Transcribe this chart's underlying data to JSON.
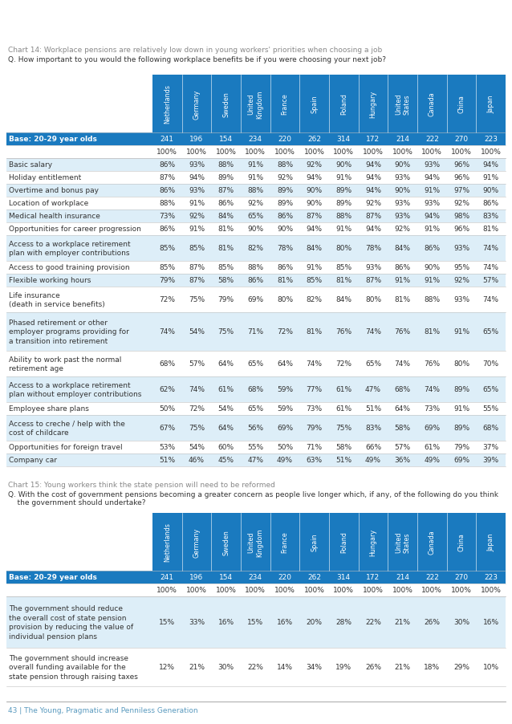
{
  "chart1_title": "Chart 14: Workplace pensions are relatively low down in young workers' priorities when choosing a job",
  "chart1_question": "Q. How important to you would the following workplace benefits be if you were choosing your next job?",
  "chart2_title": "Chart 15: Young workers think the state pension will need to be reformed",
  "chart2_question_line1": "Q. With the cost of government pensions becoming a greater concern as people live longer which, if any, of the following do you think",
  "chart2_question_line2": "    the government should undertake?",
  "countries": [
    "Netherlands",
    "Germany",
    "Sweden",
    "United\nKingdom",
    "France",
    "Spain",
    "Poland",
    "Hungary",
    "United\nStates",
    "Canada",
    "China",
    "Japan"
  ],
  "base_label": "Base: 20-29 year olds",
  "base_n": [
    "241",
    "196",
    "154",
    "234",
    "220",
    "262",
    "314",
    "172",
    "214",
    "222",
    "270",
    "223"
  ],
  "base_pct": [
    "100%",
    "100%",
    "100%",
    "100%",
    "100%",
    "100%",
    "100%",
    "100%",
    "100%",
    "100%",
    "100%",
    "100%"
  ],
  "table1_rows": [
    {
      "label": "Basic salary",
      "values": [
        "86%",
        "93%",
        "88%",
        "91%",
        "88%",
        "92%",
        "90%",
        "94%",
        "90%",
        "93%",
        "96%",
        "94%"
      ]
    },
    {
      "label": "Holiday entitlement",
      "values": [
        "87%",
        "94%",
        "89%",
        "91%",
        "92%",
        "94%",
        "91%",
        "94%",
        "93%",
        "94%",
        "96%",
        "91%"
      ]
    },
    {
      "label": "Overtime and bonus pay",
      "values": [
        "86%",
        "93%",
        "87%",
        "88%",
        "89%",
        "90%",
        "89%",
        "94%",
        "90%",
        "91%",
        "97%",
        "90%"
      ]
    },
    {
      "label": "Location of workplace",
      "values": [
        "88%",
        "91%",
        "86%",
        "92%",
        "89%",
        "90%",
        "89%",
        "92%",
        "93%",
        "93%",
        "92%",
        "86%"
      ]
    },
    {
      "label": "Medical health insurance",
      "values": [
        "73%",
        "92%",
        "84%",
        "65%",
        "86%",
        "87%",
        "88%",
        "87%",
        "93%",
        "94%",
        "98%",
        "83%"
      ]
    },
    {
      "label": "Opportunities for career progression",
      "values": [
        "86%",
        "91%",
        "81%",
        "90%",
        "90%",
        "94%",
        "91%",
        "94%",
        "92%",
        "91%",
        "96%",
        "81%"
      ]
    },
    {
      "label": "Access to a workplace retirement\nplan with employer contributions",
      "values": [
        "85%",
        "85%",
        "81%",
        "82%",
        "78%",
        "84%",
        "80%",
        "78%",
        "84%",
        "86%",
        "93%",
        "74%"
      ]
    },
    {
      "label": "Access to good training provision",
      "values": [
        "85%",
        "87%",
        "85%",
        "88%",
        "86%",
        "91%",
        "85%",
        "93%",
        "86%",
        "90%",
        "95%",
        "74%"
      ]
    },
    {
      "label": "Flexible working hours",
      "values": [
        "79%",
        "87%",
        "58%",
        "86%",
        "81%",
        "85%",
        "81%",
        "87%",
        "91%",
        "91%",
        "92%",
        "57%"
      ]
    },
    {
      "label": "Life insurance\n(death in service benefits)",
      "values": [
        "72%",
        "75%",
        "79%",
        "69%",
        "80%",
        "82%",
        "84%",
        "80%",
        "81%",
        "88%",
        "93%",
        "74%"
      ]
    },
    {
      "label": "Phased retirement or other\nemployer programs providing for\na transition into retirement",
      "values": [
        "74%",
        "54%",
        "75%",
        "71%",
        "72%",
        "81%",
        "76%",
        "74%",
        "76%",
        "81%",
        "91%",
        "65%"
      ]
    },
    {
      "label": "Ability to work past the normal\nretirement age",
      "values": [
        "68%",
        "57%",
        "64%",
        "65%",
        "64%",
        "74%",
        "72%",
        "65%",
        "74%",
        "76%",
        "80%",
        "70%"
      ]
    },
    {
      "label": "Access to a workplace retirement\nplan without employer contributions",
      "values": [
        "62%",
        "74%",
        "61%",
        "68%",
        "59%",
        "77%",
        "61%",
        "47%",
        "68%",
        "74%",
        "89%",
        "65%"
      ]
    },
    {
      "label": "Employee share plans",
      "values": [
        "50%",
        "72%",
        "54%",
        "65%",
        "59%",
        "73%",
        "61%",
        "51%",
        "64%",
        "73%",
        "91%",
        "55%"
      ]
    },
    {
      "label": "Access to creche / help with the\ncost of childcare",
      "values": [
        "67%",
        "75%",
        "64%",
        "56%",
        "69%",
        "79%",
        "75%",
        "83%",
        "58%",
        "69%",
        "89%",
        "68%"
      ]
    },
    {
      "label": "Opportunities for foreign travel",
      "values": [
        "53%",
        "54%",
        "60%",
        "55%",
        "50%",
        "71%",
        "58%",
        "66%",
        "57%",
        "61%",
        "79%",
        "37%"
      ]
    },
    {
      "label": "Company car",
      "values": [
        "51%",
        "46%",
        "45%",
        "47%",
        "49%",
        "63%",
        "51%",
        "49%",
        "36%",
        "49%",
        "69%",
        "39%"
      ]
    }
  ],
  "table2_rows": [
    {
      "label": "The government should reduce\nthe overall cost of state pension\nprovision by reducing the value of\nindividual pension plans",
      "values": [
        "15%",
        "33%",
        "16%",
        "15%",
        "16%",
        "20%",
        "28%",
        "22%",
        "21%",
        "26%",
        "30%",
        "16%"
      ]
    },
    {
      "label": "The government should increase\noverall funding available for the\nstate pension through raising taxes",
      "values": [
        "12%",
        "21%",
        "30%",
        "22%",
        "14%",
        "34%",
        "19%",
        "26%",
        "21%",
        "18%",
        "29%",
        "10%"
      ]
    }
  ],
  "header_bg": "#1a7abf",
  "header_text": "#ffffff",
  "base_row_bg": "#1a7abf",
  "base_row_text": "#ffffff",
  "alt_row_bg": "#ddeef8",
  "normal_row_bg": "#ffffff",
  "border_color": "#c0c0c0",
  "text_color": "#333333",
  "title_color": "#888888",
  "question_color": "#333333",
  "footer_text": "43 | The Young, Pragmatic and Penniless Generation",
  "footer_color": "#5a9abf",
  "page_bg": "#ffffff"
}
